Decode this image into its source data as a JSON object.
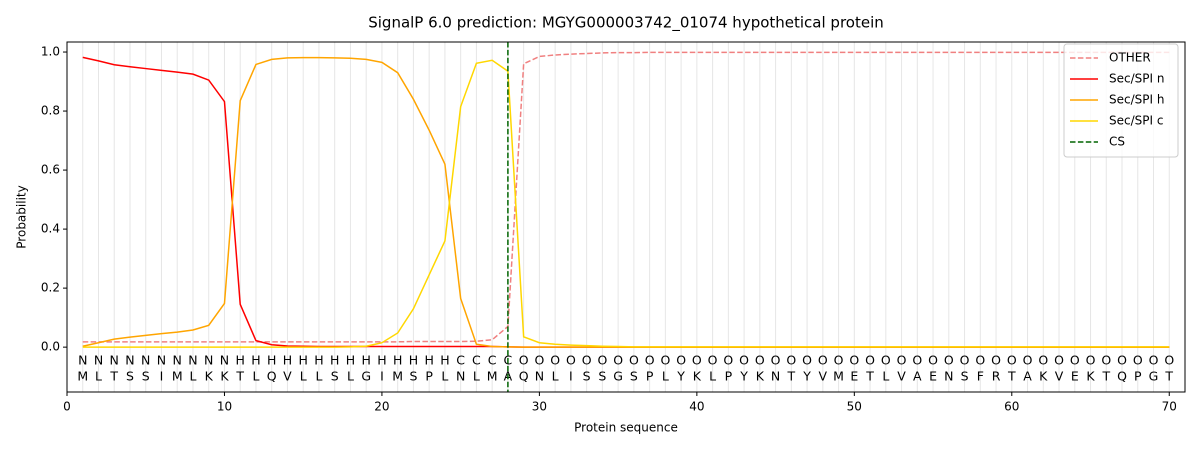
{
  "chart_data": {
    "type": "line",
    "title": "SignalP 6.0 prediction: MGYG000003742_01074 hypothetical protein",
    "x_label": "Protein sequence",
    "y_label": "Probability",
    "x": [
      1,
      2,
      3,
      4,
      5,
      6,
      7,
      8,
      9,
      10,
      11,
      12,
      13,
      14,
      15,
      16,
      17,
      18,
      19,
      20,
      21,
      22,
      23,
      24,
      25,
      26,
      27,
      28,
      29,
      30,
      31,
      32,
      33,
      34,
      35,
      36,
      37,
      38,
      39,
      40,
      41,
      42,
      43,
      44,
      45,
      46,
      47,
      48,
      49,
      50,
      51,
      52,
      53,
      54,
      55,
      56,
      57,
      58,
      59,
      60,
      61,
      62,
      63,
      64,
      65,
      66,
      67,
      68,
      69,
      70
    ],
    "sequence": [
      "M",
      "L",
      "T",
      "S",
      "S",
      "I",
      "M",
      "L",
      "K",
      "K",
      "T",
      "L",
      "Q",
      "V",
      "L",
      "L",
      "S",
      "L",
      "G",
      "I",
      "M",
      "S",
      "P",
      "L",
      "N",
      "L",
      "M",
      "A",
      "Q",
      "N",
      "L",
      "I",
      "S",
      "S",
      "G",
      "S",
      "P",
      "L",
      "Y",
      "K",
      "L",
      "P",
      "Y",
      "K",
      "N",
      "T",
      "Y",
      "V",
      "M",
      "E",
      "T",
      "L",
      "V",
      "A",
      "E",
      "N",
      "S",
      "F",
      "R",
      "T",
      "A",
      "K",
      "V",
      "E",
      "K",
      "T",
      "Q",
      "P",
      "G",
      "T"
    ],
    "regions": [
      "N",
      "N",
      "N",
      "N",
      "N",
      "N",
      "N",
      "N",
      "N",
      "N",
      "H",
      "H",
      "H",
      "H",
      "H",
      "H",
      "H",
      "H",
      "H",
      "H",
      "H",
      "H",
      "H",
      "H",
      "C",
      "C",
      "C",
      "C",
      "O",
      "O",
      "O",
      "O",
      "O",
      "O",
      "O",
      "O",
      "O",
      "O",
      "O",
      "O",
      "O",
      "O",
      "O",
      "O",
      "O",
      "O",
      "O",
      "O",
      "O",
      "O",
      "O",
      "O",
      "O",
      "O",
      "O",
      "O",
      "O",
      "O",
      "O",
      "O",
      "O",
      "O",
      "O",
      "O",
      "O",
      "O",
      "O",
      "O",
      "O",
      "O"
    ],
    "region_colors": {
      "N": "#ff0000",
      "H": "#ffa500",
      "C": "#ffd700",
      "O": "#808080"
    },
    "series": [
      {
        "name": "OTHER",
        "color": "#f08080",
        "dashed": true,
        "values": [
          0.018,
          0.018,
          0.018,
          0.018,
          0.018,
          0.018,
          0.018,
          0.018,
          0.018,
          0.018,
          0.018,
          0.018,
          0.018,
          0.018,
          0.018,
          0.018,
          0.018,
          0.018,
          0.018,
          0.018,
          0.018,
          0.019,
          0.019,
          0.019,
          0.019,
          0.02,
          0.025,
          0.07,
          0.96,
          0.985,
          0.99,
          0.993,
          0.995,
          0.997,
          0.998,
          0.998,
          0.999,
          0.999,
          0.999,
          0.999,
          0.999,
          0.999,
          0.999,
          0.999,
          0.999,
          0.999,
          0.999,
          0.999,
          0.999,
          0.999,
          0.999,
          0.999,
          0.999,
          0.999,
          0.999,
          0.999,
          0.999,
          0.999,
          0.999,
          0.999,
          0.999,
          0.999,
          0.999,
          0.999,
          0.999,
          0.999,
          0.999,
          0.999,
          0.999,
          0.999
        ]
      },
      {
        "name": "Sec/SPI n",
        "color": "#ff0000",
        "values": [
          0.982,
          0.97,
          0.957,
          0.95,
          0.944,
          0.938,
          0.932,
          0.925,
          0.905,
          0.832,
          0.145,
          0.022,
          0.008,
          0.004,
          0.003,
          0.002,
          0.002,
          0.002,
          0.002,
          0.002,
          0.002,
          0.002,
          0.002,
          0.002,
          0.002,
          0.002,
          0.002,
          0.001,
          0,
          0,
          0,
          0,
          0,
          0,
          0,
          0,
          0,
          0,
          0,
          0,
          0,
          0,
          0,
          0,
          0,
          0,
          0,
          0,
          0,
          0,
          0,
          0,
          0,
          0,
          0,
          0,
          0,
          0,
          0,
          0,
          0,
          0,
          0,
          0,
          0,
          0,
          0,
          0,
          0,
          0
        ]
      },
      {
        "name": "Sec/SPI h",
        "color": "#ffa500",
        "values": [
          0.003,
          0.015,
          0.027,
          0.034,
          0.04,
          0.046,
          0.051,
          0.058,
          0.074,
          0.148,
          0.835,
          0.958,
          0.975,
          0.98,
          0.981,
          0.981,
          0.98,
          0.979,
          0.975,
          0.965,
          0.93,
          0.84,
          0.735,
          0.62,
          0.165,
          0.01,
          0.002,
          0.001,
          0,
          0,
          0,
          0,
          0,
          0,
          0,
          0,
          0,
          0,
          0,
          0,
          0,
          0,
          0,
          0,
          0,
          0,
          0,
          0,
          0,
          0,
          0,
          0,
          0,
          0,
          0,
          0,
          0,
          0,
          0,
          0,
          0,
          0,
          0,
          0,
          0,
          0,
          0,
          0,
          0,
          0
        ]
      },
      {
        "name": "Sec/SPI c",
        "color": "#ffd700",
        "values": [
          0,
          0,
          0,
          0,
          0,
          0,
          0,
          0,
          0,
          0,
          0,
          0,
          0,
          0,
          0,
          0,
          0,
          0.001,
          0.003,
          0.015,
          0.048,
          0.13,
          0.245,
          0.36,
          0.815,
          0.962,
          0.972,
          0.935,
          0.035,
          0.015,
          0.01,
          0.007,
          0.005,
          0.003,
          0.002,
          0.001,
          0.001,
          0.001,
          0.001,
          0.001,
          0.001,
          0.001,
          0.001,
          0.001,
          0.001,
          0.001,
          0.001,
          0.001,
          0.001,
          0.001,
          0.001,
          0.001,
          0.001,
          0.001,
          0.001,
          0.001,
          0.001,
          0.001,
          0.001,
          0.001,
          0.001,
          0.001,
          0.001,
          0.001,
          0.001,
          0.001,
          0.001,
          0.001,
          0.001,
          0.001
        ]
      }
    ],
    "cs": {
      "name": "CS",
      "x": 28,
      "color": "#006400"
    },
    "xlim": [
      0,
      71
    ],
    "ylim": [
      -0.152,
      1.034
    ],
    "xticks": [
      0,
      10,
      20,
      30,
      40,
      50,
      60,
      70
    ],
    "yticks": [
      {
        "value": 0,
        "label": "0.0"
      },
      {
        "value": 0.2,
        "label": "0.2"
      },
      {
        "value": 0.4,
        "label": "0.4"
      },
      {
        "value": 0.6,
        "label": "0.6"
      },
      {
        "value": 0.8,
        "label": "0.8"
      },
      {
        "value": 1,
        "label": "1.0"
      }
    ],
    "legend": "upper right"
  }
}
